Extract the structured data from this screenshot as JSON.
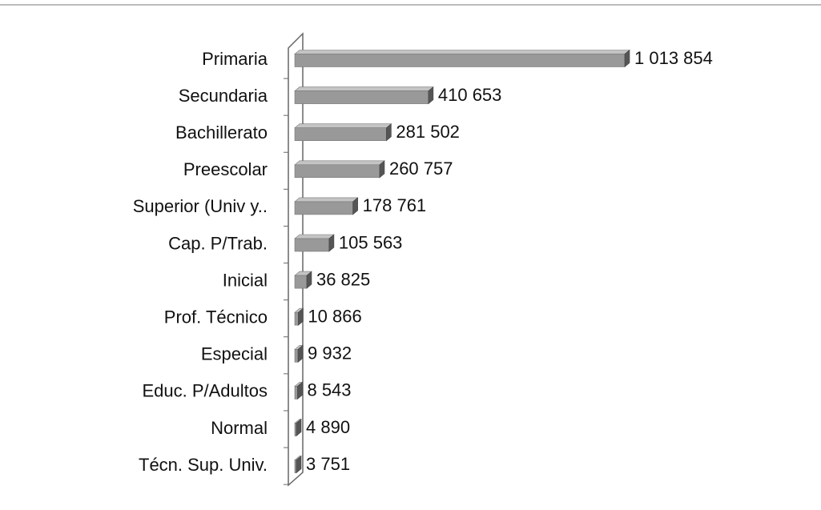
{
  "chart_data": {
    "type": "bar",
    "orientation": "horizontal",
    "categories": [
      "Primaria",
      "Secundaria",
      "Bachillerato",
      "Preescolar",
      "Superior (Univ y..",
      "Cap. P/Trab.",
      "Inicial",
      "Prof. Técnico",
      "Especial",
      "Educ. P/Adultos",
      "Normal",
      "Técn. Sup. Univ."
    ],
    "values": [
      1013854,
      410653,
      281502,
      260757,
      178761,
      105563,
      36825,
      10866,
      9932,
      8543,
      4890,
      3751
    ],
    "value_labels": [
      "1 013 854",
      "410 653",
      "281 502",
      "260 757",
      "178 761",
      "105 563",
      "36 825",
      "10 866",
      "9 932",
      "8 543",
      "4 890",
      "3 751"
    ],
    "color": "#999999"
  }
}
